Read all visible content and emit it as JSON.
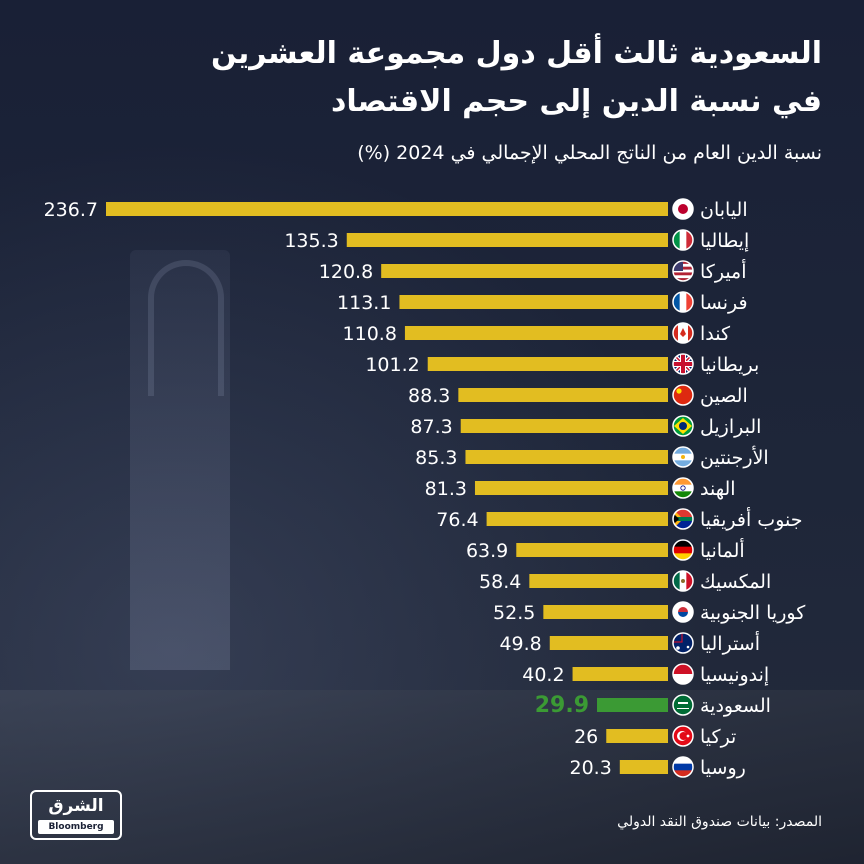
{
  "header": {
    "title_line1": "السعودية ثالث أقل دول مجموعة العشرين",
    "title_line2": "في نسبة الدين إلى حجم الاقتصاد"
  },
  "footer": {
    "source": "المصدر: بيانات صندوق النقد الدولي",
    "logo_text": "الشرق",
    "logo_sub": "Bloomberg"
  },
  "colors": {
    "bar": "#e2bd21",
    "highlight": "#3b9a34",
    "text": "#ffffff"
  },
  "chart_data": {
    "type": "bar",
    "orientation": "horizontal",
    "title": "",
    "subtitle": "نسبة الدين العام من الناتج المحلي الإجمالي في 2024 (%)",
    "xlabel": "",
    "ylabel": "",
    "xlim": [
      0,
      236.7
    ],
    "grid": false,
    "legend": "none",
    "highlight_index": 16,
    "categories": [
      "اليابان",
      "إيطاليا",
      "أميركا",
      "فرنسا",
      "كندا",
      "بريطانيا",
      "الصين",
      "البرازيل",
      "الأرجنتين",
      "الهند",
      "جنوب أفريقيا",
      "ألمانيا",
      "المكسيك",
      "كوريا الجنوبية",
      "أستراليا",
      "إندونيسيا",
      "السعودية",
      "تركيا",
      "روسيا"
    ],
    "value_labels": [
      "236.7",
      "135.3",
      "120.8",
      "113.1",
      "110.8",
      "101.2",
      "88.3",
      "87.3",
      "85.3",
      "81.3",
      "76.4",
      "63.9",
      "58.4",
      "52.5",
      "49.8",
      "40.2",
      "29.9",
      "26",
      "20.3"
    ],
    "values": [
      236.7,
      135.3,
      120.8,
      113.1,
      110.8,
      101.2,
      88.3,
      87.3,
      85.3,
      81.3,
      76.4,
      63.9,
      58.4,
      52.5,
      49.8,
      40.2,
      29.9,
      26,
      20.3
    ],
    "flag_icons": [
      "japan-flag-icon",
      "italy-flag-icon",
      "usa-flag-icon",
      "france-flag-icon",
      "canada-flag-icon",
      "uk-flag-icon",
      "china-flag-icon",
      "brazil-flag-icon",
      "argentina-flag-icon",
      "india-flag-icon",
      "south-africa-flag-icon",
      "germany-flag-icon",
      "mexico-flag-icon",
      "south-korea-flag-icon",
      "australia-flag-icon",
      "indonesia-flag-icon",
      "saudi-flag-icon",
      "turkey-flag-icon",
      "russia-flag-icon"
    ]
  }
}
